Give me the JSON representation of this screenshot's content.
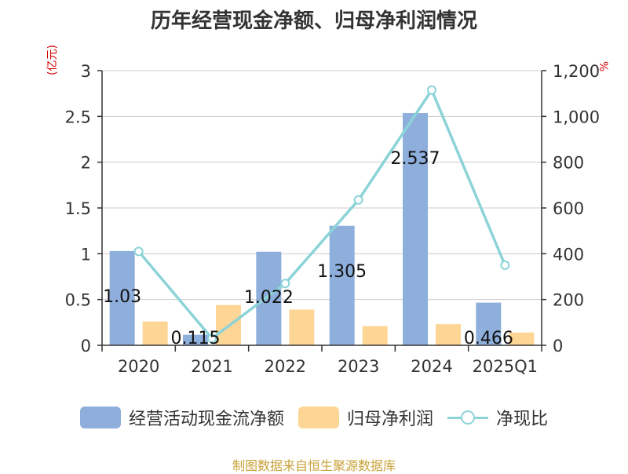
{
  "chart_data": {
    "type": "bar",
    "title": "历年经营现金净额、归母净利润情况",
    "categories": [
      "2020",
      "2021",
      "2022",
      "2023",
      "2024",
      "2025Q1"
    ],
    "left_axis": {
      "unit": "(亿元)",
      "ylim": [
        0,
        3
      ],
      "ticks": [
        0,
        0.5,
        1,
        1.5,
        2,
        2.5,
        3
      ],
      "tick_labels": [
        "0",
        "0.5",
        "1",
        "1.5",
        "2",
        "2.5",
        "3"
      ]
    },
    "right_axis": {
      "unit": "%",
      "ylim": [
        0,
        1200
      ],
      "ticks": [
        0,
        200,
        400,
        600,
        800,
        1000,
        1200
      ],
      "tick_labels": [
        "0",
        "200",
        "400",
        "600",
        "800",
        "1,000",
        "1,200"
      ]
    },
    "grid": true,
    "legend_position": "bottom",
    "series": [
      {
        "name": "经营活动现金流净额",
        "type": "bar",
        "axis": "left",
        "color": "#8eaedc",
        "values": [
          1.03,
          0.115,
          1.022,
          1.305,
          2.537,
          0.466
        ],
        "labels": [
          "1.03",
          "0.115",
          "1.022",
          "1.305",
          "2.537",
          "0.466"
        ]
      },
      {
        "name": "归母净利润",
        "type": "bar",
        "axis": "left",
        "color": "#fdd594",
        "values": [
          0.26,
          0.44,
          0.39,
          0.21,
          0.23,
          0.14
        ]
      },
      {
        "name": "净现比",
        "type": "line",
        "axis": "right",
        "color": "#8cd3d8",
        "values": [
          410,
          30,
          270,
          635,
          1115,
          350
        ]
      }
    ]
  },
  "source": "制图数据来自恒生聚源数据库"
}
